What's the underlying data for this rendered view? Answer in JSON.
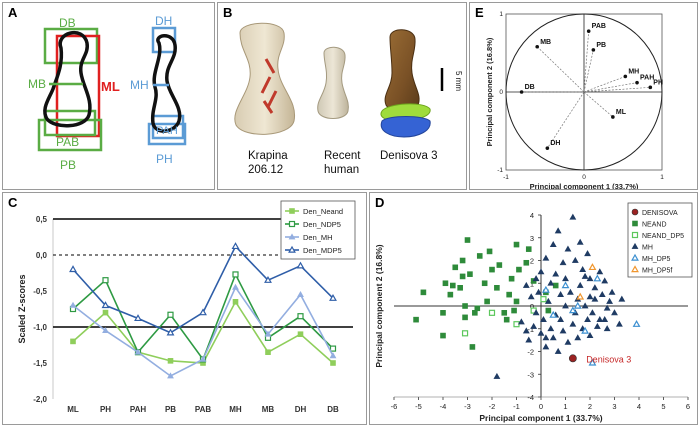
{
  "panels": {
    "a": {
      "label": "A",
      "measures": {
        "db": "DB",
        "mb": "MB",
        "ml": "ML",
        "pab": "PAB",
        "pb": "PB",
        "dh": "DH",
        "mh": "MH",
        "pah": "PAH",
        "ph": "PH"
      },
      "colors": {
        "breadth": "#5aac44",
        "length": "#e02020",
        "height": "#5b9bd5"
      }
    },
    "b": {
      "label": "B",
      "scale_label": "5 mm",
      "specimens": [
        {
          "line1": "Krapina",
          "line2": "206.12"
        },
        {
          "line1": "Recent",
          "line2": "human"
        },
        {
          "line1": "Denisova 3",
          "line2": ""
        }
      ]
    },
    "c": {
      "label": "C"
    },
    "d": {
      "label": "D"
    },
    "e": {
      "label": "E"
    }
  },
  "chart_data": [
    {
      "id": "C",
      "type": "line",
      "ylabel": "Scaled Z-scores",
      "categories": [
        "ML",
        "PH",
        "PAH",
        "PB",
        "PAB",
        "MH",
        "MB",
        "DH",
        "DB"
      ],
      "ylim": [
        -2.0,
        0.5
      ],
      "yticks": [
        "0,5",
        "0,0",
        "-0,5",
        "-1,0",
        "-1,5",
        "-2,0"
      ],
      "reference_lines": [
        {
          "y": 0.0,
          "style": "dashed"
        },
        {
          "y": 1.0,
          "style": "solid"
        },
        {
          "y": -1.0,
          "style": "solid"
        }
      ],
      "legend_position": "top-right",
      "series": [
        {
          "name": "Den_Neand",
          "color": "#8fce5b",
          "marker": "filled-square",
          "values": [
            -1.2,
            -0.8,
            -1.35,
            -1.47,
            -1.5,
            -0.65,
            -1.35,
            -1.1,
            -1.5
          ]
        },
        {
          "name": "Den_NDP5",
          "color": "#2e9a43",
          "marker": "open-square",
          "values": [
            -0.75,
            -0.35,
            -1.35,
            -0.83,
            -1.45,
            -0.27,
            -1.15,
            -0.85,
            -1.3
          ]
        },
        {
          "name": "Den_MH",
          "color": "#93aee0",
          "marker": "filled-triangle",
          "values": [
            -0.7,
            -1.05,
            -1.35,
            -1.68,
            -1.45,
            -0.45,
            -1.1,
            -0.55,
            -1.4
          ]
        },
        {
          "name": "Den_MDP5",
          "color": "#2f5ea8",
          "marker": "open-triangle",
          "values": [
            -0.2,
            -0.7,
            -0.88,
            -1.08,
            -0.8,
            0.12,
            -0.35,
            -0.15,
            -0.6
          ]
        }
      ]
    },
    {
      "id": "D",
      "type": "scatter",
      "xlabel": "Principal component 1 (33.7%)",
      "ylabel": "Principal component 2 (16.8%)",
      "xlim": [
        -6,
        6
      ],
      "ylim": [
        -4,
        4
      ],
      "xticks": [
        -6,
        -5,
        -4,
        -3,
        -2,
        -1,
        0,
        1,
        2,
        3,
        4,
        5,
        6
      ],
      "yticks": [
        4,
        3,
        2,
        1,
        0,
        -1,
        -2,
        -3,
        -4
      ],
      "legend_position": "top-right",
      "annotation": {
        "text": "Denisova 3",
        "x": 1.6,
        "y": -2.3,
        "color": "#c62828"
      },
      "series": [
        {
          "name": "DENISOVA",
          "color": "#9b2222",
          "marker": "circle",
          "points": [
            [
              1.3,
              -2.3
            ]
          ]
        },
        {
          "name": "NEAND",
          "color": "#2e8b3a",
          "marker": "filled-square",
          "points": [
            [
              -3.5,
              1.7
            ],
            [
              -3.0,
              2.9
            ],
            [
              -3.2,
              2.0
            ],
            [
              -3.2,
              1.3
            ],
            [
              -2.1,
              2.4
            ],
            [
              -2.5,
              2.2
            ],
            [
              -2.0,
              1.6
            ],
            [
              -1.7,
              1.8
            ],
            [
              -1.0,
              2.7
            ],
            [
              -0.5,
              2.5
            ],
            [
              -0.9,
              1.6
            ],
            [
              -0.6,
              1.9
            ],
            [
              -0.3,
              1.1
            ],
            [
              -1.8,
              0.8
            ],
            [
              -2.2,
              0.2
            ],
            [
              -1.3,
              0.5
            ],
            [
              -2.7,
              -0.3
            ],
            [
              -1.4,
              -0.6
            ],
            [
              -1.0,
              0.2
            ],
            [
              -3.9,
              1.0
            ],
            [
              -3.6,
              0.9
            ],
            [
              -3.7,
              0.5
            ],
            [
              -3.3,
              0.8
            ],
            [
              -3.1,
              0.0
            ],
            [
              -4.0,
              -0.3
            ],
            [
              -4.8,
              0.6
            ],
            [
              -5.1,
              -0.6
            ],
            [
              -4.0,
              -1.3
            ],
            [
              -3.1,
              -0.5
            ],
            [
              -2.6,
              -0.1
            ],
            [
              -2.8,
              -1.8
            ],
            [
              0.2,
              0.6
            ],
            [
              0.6,
              0.9
            ],
            [
              0.3,
              -0.2
            ],
            [
              -1.5,
              -0.3
            ],
            [
              -1.1,
              -0.2
            ],
            [
              -2.3,
              1.0
            ],
            [
              -2.9,
              1.4
            ],
            [
              -1.2,
              1.2
            ]
          ]
        },
        {
          "name": "NEAND_DP5",
          "color": "#5cc75c",
          "marker": "open-square",
          "points": [
            [
              -3.1,
              -1.2
            ],
            [
              -1.0,
              -0.8
            ],
            [
              -0.3,
              -0.2
            ],
            [
              0.1,
              0.3
            ],
            [
              -2.0,
              -0.3
            ]
          ]
        },
        {
          "name": "MH",
          "color": "#1f3b63",
          "marker": "filled-triangle",
          "points": [
            [
              -1.8,
              -3.1
            ],
            [
              -0.5,
              -1.5
            ],
            [
              -0.3,
              -0.9
            ],
            [
              0.0,
              -1.2
            ],
            [
              0.2,
              -1.8
            ],
            [
              0.5,
              -1.4
            ],
            [
              0.7,
              -2.0
            ],
            [
              0.9,
              -1.1
            ],
            [
              1.1,
              -1.6
            ],
            [
              1.3,
              -0.8
            ],
            [
              1.5,
              -1.4
            ],
            [
              1.7,
              -1.0
            ],
            [
              2.0,
              -1.3
            ],
            [
              2.3,
              -0.9
            ],
            [
              2.6,
              -0.6
            ],
            [
              3.0,
              -0.3
            ],
            [
              2.8,
              0.2
            ],
            [
              2.5,
              0.5
            ],
            [
              2.2,
              0.8
            ],
            [
              2.0,
              1.2
            ],
            [
              1.7,
              1.6
            ],
            [
              1.4,
              2.0
            ],
            [
              1.1,
              2.5
            ],
            [
              1.3,
              3.9
            ],
            [
              0.7,
              3.3
            ],
            [
              0.5,
              2.7
            ],
            [
              0.2,
              2.1
            ],
            [
              0.0,
              1.5
            ],
            [
              0.4,
              1.0
            ],
            [
              0.8,
              0.5
            ],
            [
              1.0,
              0.0
            ],
            [
              0.6,
              -0.4
            ],
            [
              0.1,
              -0.6
            ],
            [
              -0.2,
              -0.3
            ],
            [
              -0.4,
              0.4
            ],
            [
              -0.6,
              0.9
            ],
            [
              -0.2,
              1.2
            ],
            [
              0.3,
              0.2
            ],
            [
              1.2,
              0.6
            ],
            [
              1.5,
              0.3
            ],
            [
              1.8,
              0.0
            ],
            [
              2.1,
              -0.3
            ],
            [
              2.4,
              -0.6
            ],
            [
              2.7,
              -1.0
            ],
            [
              3.2,
              -0.8
            ],
            [
              2.9,
              0.6
            ],
            [
              2.6,
              1.1
            ],
            [
              2.4,
              1.5
            ],
            [
              1.9,
              2.3
            ],
            [
              1.6,
              2.8
            ],
            [
              0.9,
              1.9
            ],
            [
              0.6,
              1.4
            ],
            [
              1.4,
              -0.3
            ],
            [
              1.9,
              -0.6
            ],
            [
              2.2,
              0.3
            ],
            [
              -0.8,
              -0.7
            ],
            [
              -0.1,
              0.6
            ],
            [
              0.8,
              -0.6
            ],
            [
              1.6,
              0.9
            ],
            [
              2.0,
              0.4
            ],
            [
              0.4,
              -1.0
            ],
            [
              3.3,
              0.3
            ],
            [
              1.0,
              1.2
            ],
            [
              1.8,
              1.3
            ],
            [
              2.7,
              -0.1
            ],
            [
              0.2,
              -1.4
            ],
            [
              -0.6,
              -1.1
            ]
          ]
        },
        {
          "name": "MH_DP5",
          "color": "#3b8fd0",
          "marker": "open-triangle",
          "points": [
            [
              1.0,
              0.9
            ],
            [
              1.5,
              0.0
            ],
            [
              0.5,
              -0.4
            ],
            [
              2.3,
              1.2
            ],
            [
              1.8,
              -1.1
            ],
            [
              3.9,
              -0.8
            ],
            [
              2.1,
              -2.5
            ],
            [
              0.2,
              0.7
            ],
            [
              1.3,
              -0.2
            ]
          ]
        },
        {
          "name": "MH_DP5f",
          "color": "#f0962e",
          "marker": "open-triangle",
          "points": [
            [
              2.1,
              1.7
            ],
            [
              1.6,
              0.4
            ]
          ]
        }
      ]
    },
    {
      "id": "E",
      "type": "scatter",
      "subtype": "correlation-circle",
      "xlabel": "Principal component 1 (33.7%)",
      "ylabel": "Principal component 2 (16.8%)",
      "xlim": [
        -1,
        1
      ],
      "ylim": [
        -1,
        1
      ],
      "xticks": [
        -1,
        0,
        1
      ],
      "yticks": [
        1,
        0,
        -1
      ],
      "points": [
        {
          "label": "MB",
          "x": -0.6,
          "y": 0.58
        },
        {
          "label": "PAB",
          "x": 0.06,
          "y": 0.78
        },
        {
          "label": "PB",
          "x": 0.12,
          "y": 0.54
        },
        {
          "label": "MH",
          "x": 0.53,
          "y": 0.2
        },
        {
          "label": "PAH",
          "x": 0.68,
          "y": 0.12
        },
        {
          "label": "PH",
          "x": 0.85,
          "y": 0.06
        },
        {
          "label": "ML",
          "x": 0.37,
          "y": -0.32
        },
        {
          "label": "DB",
          "x": -0.8,
          "y": 0.0
        },
        {
          "label": "DH",
          "x": -0.47,
          "y": -0.72
        }
      ]
    }
  ]
}
